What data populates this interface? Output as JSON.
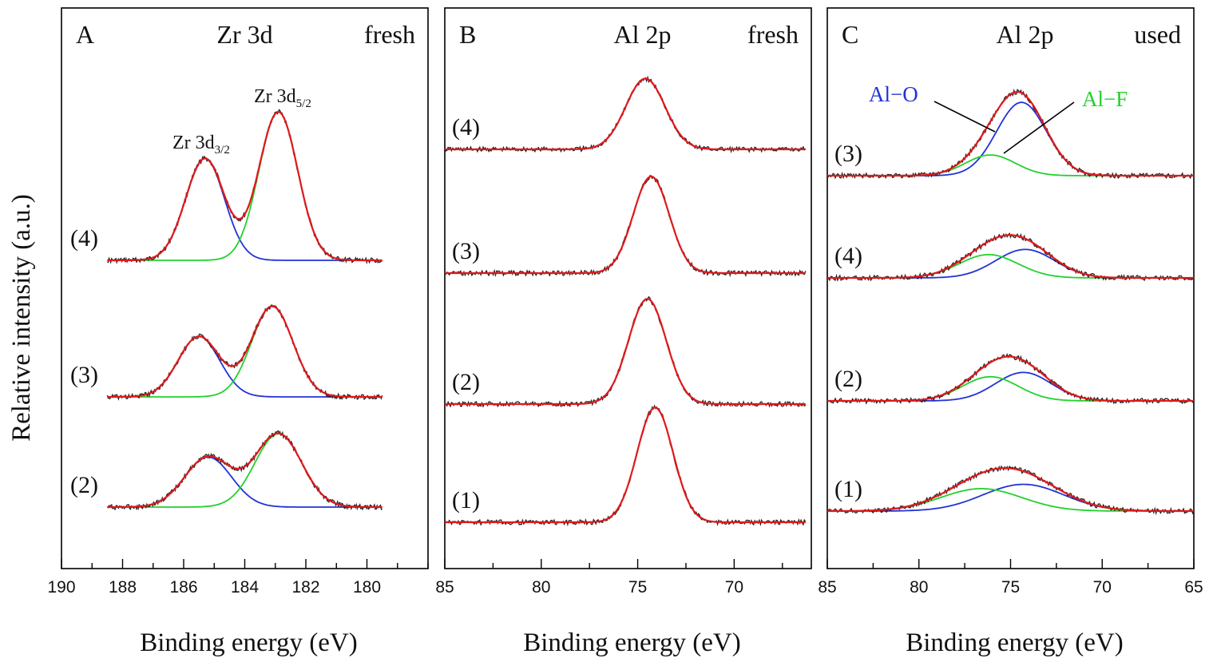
{
  "figure": {
    "ylabel": "Relative intensity (a.u.)"
  },
  "colors": {
    "envelope": "#e0191b",
    "component_1": "#2232d6",
    "component_2": "#22d12c",
    "raw": "#222222",
    "axis": "#000000"
  },
  "chart_data": [
    {
      "type": "line",
      "panel": "A",
      "title": "Zr 3d",
      "state": "fresh",
      "xlabel": "Binding energy (eV)",
      "ylabel": "Relative intensity (a.u.)",
      "xlim": [
        190,
        178
      ],
      "x_reversed": true,
      "xticks": [
        190,
        188,
        186,
        184,
        182,
        180
      ],
      "xtick_labels": [
        "190",
        "188",
        "186",
        "184",
        "182",
        "180"
      ],
      "annotations": [
        {
          "text": "Zr 3d",
          "sub": "3/2"
        },
        {
          "text": "Zr 3d",
          "sub": "5/2"
        }
      ],
      "traces": [
        {
          "label": "(4)",
          "offset": 3.0,
          "components": [
            {
              "name": "Zr 3d3/2",
              "color": "blue",
              "center": 185.3,
              "fwhm": 1.5,
              "height": 1.18
            },
            {
              "name": "Zr 3d5/2",
              "color": "green",
              "center": 182.9,
              "fwhm": 1.5,
              "height": 1.72
            }
          ]
        },
        {
          "label": "(3)",
          "offset": 1.5,
          "components": [
            {
              "name": "Zr 3d3/2",
              "color": "blue",
              "center": 185.5,
              "fwhm": 1.6,
              "height": 0.7
            },
            {
              "name": "Zr 3d5/2",
              "color": "green",
              "center": 183.1,
              "fwhm": 1.6,
              "height": 1.05
            }
          ]
        },
        {
          "label": "(2)",
          "offset": 0.0,
          "components": [
            {
              "name": "Zr 3d3/2",
              "color": "blue",
              "center": 185.2,
              "fwhm": 1.8,
              "height": 0.58
            },
            {
              "name": "Zr 3d5/2",
              "color": "green",
              "center": 182.9,
              "fwhm": 1.8,
              "height": 0.85
            }
          ]
        }
      ]
    },
    {
      "type": "line",
      "panel": "B",
      "title": "Al 2p",
      "state": "fresh",
      "xlabel": "Binding energy (eV)",
      "xlim": [
        85,
        66
      ],
      "x_reversed": true,
      "xticks": [
        85,
        80,
        75,
        70
      ],
      "xtick_labels": [
        "85",
        "80",
        "75",
        "70"
      ],
      "traces": [
        {
          "label": "(4)",
          "offset": 4.5,
          "components": [
            {
              "name": "Al 2p",
              "color": "red",
              "center": 74.6,
              "fwhm": 2.4,
              "height": 0.82
            }
          ]
        },
        {
          "label": "(3)",
          "offset": 3.0,
          "components": [
            {
              "name": "Al 2p",
              "color": "red",
              "center": 74.3,
              "fwhm": 2.2,
              "height": 1.12
            }
          ]
        },
        {
          "label": "(2)",
          "offset": 1.5,
          "components": [
            {
              "name": "Al 2p",
              "color": "red",
              "center": 74.5,
              "fwhm": 2.3,
              "height": 1.22
            }
          ]
        },
        {
          "label": "(1)",
          "offset": 0.0,
          "components": [
            {
              "name": "Al 2p",
              "color": "red",
              "center": 74.1,
              "fwhm": 2.2,
              "height": 1.33
            }
          ]
        }
      ]
    },
    {
      "type": "line",
      "panel": "C",
      "title": "Al 2p",
      "state": "used",
      "xlabel": "Binding energy (eV)",
      "xlim": [
        85,
        65
      ],
      "x_reversed": true,
      "xticks": [
        85,
        80,
        75,
        70,
        65
      ],
      "xtick_labels": [
        "85",
        "80",
        "75",
        "70",
        "65"
      ],
      "annotations": [
        {
          "text": "Al−O",
          "color": "blue"
        },
        {
          "text": "Al−F",
          "color": "green"
        }
      ],
      "traces": [
        {
          "label": "(3)",
          "offset": 4.5,
          "components": [
            {
              "name": "Al-O",
              "color": "blue",
              "center": 74.4,
              "fwhm": 3.2,
              "height": 0.85
            },
            {
              "name": "Al-F",
              "color": "green",
              "center": 76.1,
              "fwhm": 3.2,
              "height": 0.24
            }
          ]
        },
        {
          "label": "(4)",
          "offset": 3.0,
          "components": [
            {
              "name": "Al-O",
              "color": "blue",
              "center": 74.2,
              "fwhm": 3.8,
              "height": 0.33
            },
            {
              "name": "Al-F",
              "color": "green",
              "center": 76.2,
              "fwhm": 3.8,
              "height": 0.27
            }
          ]
        },
        {
          "label": "(2)",
          "offset": 1.5,
          "components": [
            {
              "name": "Al-O",
              "color": "blue",
              "center": 74.3,
              "fwhm": 3.6,
              "height": 0.33
            },
            {
              "name": "Al-F",
              "color": "green",
              "center": 76.1,
              "fwhm": 3.6,
              "height": 0.28
            }
          ]
        },
        {
          "label": "(1)",
          "offset": 0.0,
          "components": [
            {
              "name": "Al-O",
              "color": "blue",
              "center": 74.3,
              "fwhm": 5.2,
              "height": 0.31
            },
            {
              "name": "Al-F",
              "color": "green",
              "center": 76.6,
              "fwhm": 5.2,
              "height": 0.26
            }
          ]
        }
      ]
    }
  ]
}
